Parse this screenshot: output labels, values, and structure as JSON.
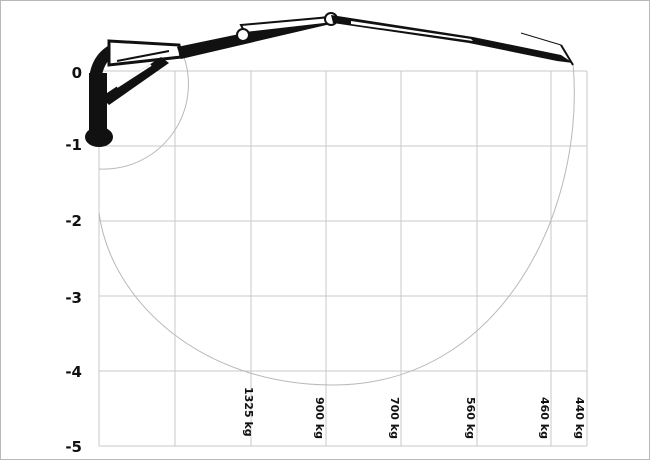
{
  "chart_data": {
    "type": "diagram",
    "subject": "crane boom reach / load chart",
    "y_ticks": [
      "0",
      "-1",
      "-2",
      "-3",
      "-4",
      "-5"
    ],
    "load_labels": [
      "1325 kg",
      "900 kg",
      "700 kg",
      "560 kg",
      "460 kg",
      "440 kg"
    ],
    "colors": {
      "grid": "#c8c8c8",
      "arc": "#b8b8b8",
      "boom": "#111111"
    }
  }
}
